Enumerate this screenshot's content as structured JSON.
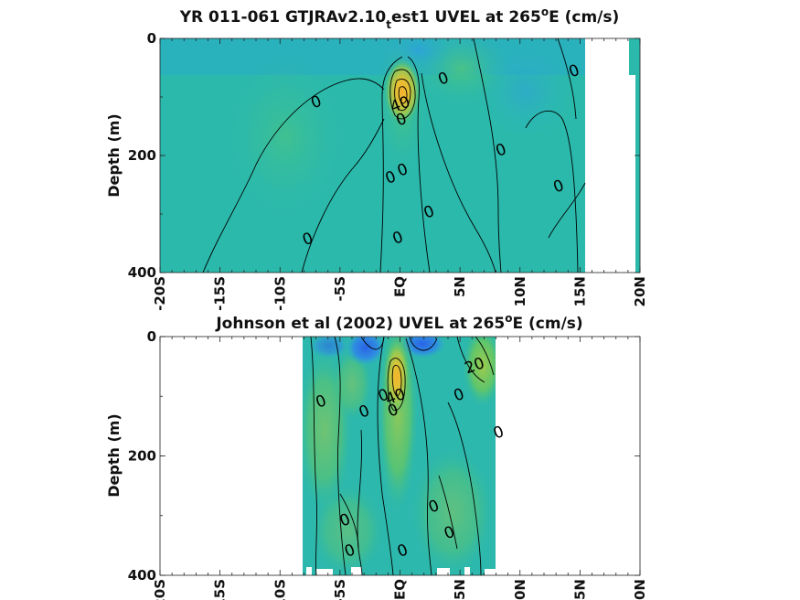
{
  "chart_data": [
    {
      "type": "heatmap",
      "title": {
        "pre": "YR 011-061 GTJRAv2.10",
        "sub": "t",
        "mid": "est1 UVEL at 265",
        "sup": "o",
        "post": "E (cm/s)"
      },
      "ylabel": "Depth (m)",
      "xlim": [
        -20,
        20
      ],
      "ylim": [
        0,
        400
      ],
      "x_ticks": [
        "-20S",
        "-15S",
        "-10S",
        "-5S",
        "EQ",
        "5N",
        "10N",
        "15N",
        "20N"
      ],
      "y_ticks": [
        "0",
        "200",
        "400"
      ],
      "contour_labels": [
        {
          "text": "0",
          "lat": -7,
          "depth": 108
        },
        {
          "text": "0",
          "lat": 3.6,
          "depth": 68
        },
        {
          "text": "0",
          "lat": 14.5,
          "depth": 55
        },
        {
          "text": "40",
          "lat": 0,
          "depth": 112
        },
        {
          "text": "0",
          "lat": 0.1,
          "depth": 138
        },
        {
          "text": "0",
          "lat": 8.4,
          "depth": 190
        },
        {
          "text": "0",
          "lat": 0.2,
          "depth": 224
        },
        {
          "text": "0",
          "lat": -0.8,
          "depth": 237
        },
        {
          "text": "0",
          "lat": 13.2,
          "depth": 252
        },
        {
          "text": "0",
          "lat": 2.4,
          "depth": 296
        },
        {
          "text": "0",
          "lat": -7.7,
          "depth": 342
        },
        {
          "text": "0",
          "lat": -0.2,
          "depth": 340
        }
      ]
    },
    {
      "type": "heatmap",
      "title": {
        "pre": "Johnson et al (2002) UVEL at 265",
        "sub": "",
        "mid": "",
        "sup": "o",
        "post": "E (cm/s)"
      },
      "ylabel": "Depth (m)",
      "xlim": [
        -20,
        20
      ],
      "ylim": [
        0,
        400
      ],
      "x_ticks": [
        "-20S",
        "-15S",
        "-10S",
        "-5S",
        "EQ",
        "5N",
        "10N",
        "15N",
        "20N"
      ],
      "y_ticks": [
        "0",
        "200",
        "400"
      ],
      "contour_labels": [
        {
          "text": "20",
          "lat": 6.2,
          "depth": 48
        },
        {
          "text": "0",
          "lat": -6.6,
          "depth": 108
        },
        {
          "text": "0",
          "lat": -1.4,
          "depth": 98
        },
        {
          "text": "40",
          "lat": -0.4,
          "depth": 100
        },
        {
          "text": "0",
          "lat": -0.6,
          "depth": 123
        },
        {
          "text": "0",
          "lat": 4.9,
          "depth": 97
        },
        {
          "text": "0",
          "lat": -3.0,
          "depth": 125
        },
        {
          "text": "0",
          "lat": 8.2,
          "depth": 160
        },
        {
          "text": "0",
          "lat": 2.8,
          "depth": 284
        },
        {
          "text": "0",
          "lat": -4.6,
          "depth": 307
        },
        {
          "text": "0",
          "lat": 4.1,
          "depth": 328
        },
        {
          "text": "0",
          "lat": -4.2,
          "depth": 358
        },
        {
          "text": "0",
          "lat": 0.2,
          "depth": 358
        }
      ]
    }
  ]
}
